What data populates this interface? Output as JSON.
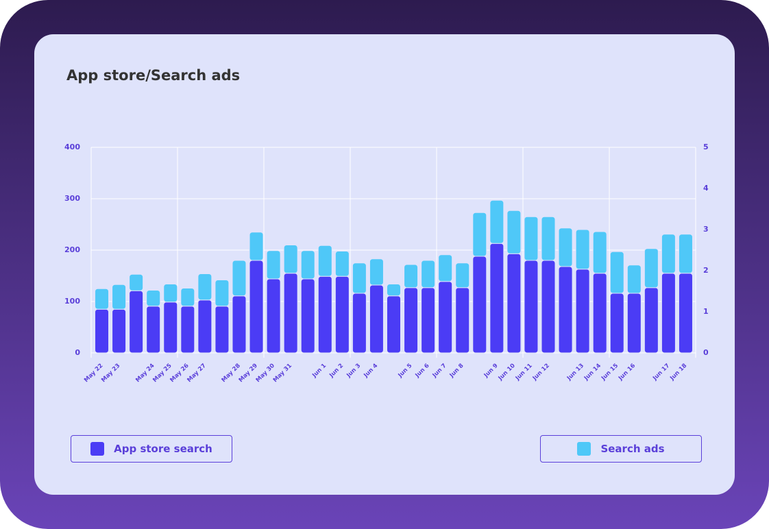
{
  "chart_data": {
    "type": "stacked_bar",
    "title": "App store/Search ads",
    "categories": [
      "May 22",
      "May 23",
      null,
      "May 24",
      "May 25",
      "May 26",
      "May 27",
      null,
      "May 28",
      "May 29",
      "May 30",
      "May 31",
      null,
      "Jun 1",
      "Jun 2",
      "Jun 3",
      "Jun 4",
      null,
      "Jun 5",
      "Jun 6",
      "Jun 7",
      "Jun 8",
      null,
      "Jun 9",
      "Jun 10",
      "Jun 11",
      "Jun 12",
      null,
      "Jun 13",
      "Jun 14",
      "Jun 15",
      "Jun 16",
      null,
      "Jun 17",
      "Jun 18"
    ],
    "series": [
      {
        "name": "App store search",
        "color": "#4b3cf5",
        "values": [
          85,
          85,
          121,
          91,
          99,
          91,
          103,
          91,
          111,
          180,
          144,
          155,
          144,
          149,
          149,
          116,
          132,
          111,
          127,
          127,
          139,
          127,
          188,
          213,
          193,
          180,
          180,
          168,
          163,
          155,
          116,
          116,
          127,
          155,
          155
        ]
      },
      {
        "name": "Search ads",
        "color": "#4fc8f8",
        "values": [
          40,
          48,
          32,
          31,
          35,
          35,
          51,
          51,
          69,
          55,
          55,
          55,
          55,
          60,
          49,
          59,
          51,
          23,
          45,
          53,
          52,
          48,
          85,
          84,
          84,
          85,
          85,
          75,
          77,
          81,
          81,
          55,
          76,
          76,
          76
        ]
      }
    ],
    "ylim": [
      0,
      400
    ],
    "yticks": [
      0,
      100,
      200,
      300,
      400
    ],
    "y2lim": [
      0,
      5
    ],
    "y2ticks": [
      0,
      1,
      2,
      3,
      4,
      5
    ],
    "grid": true
  }
}
